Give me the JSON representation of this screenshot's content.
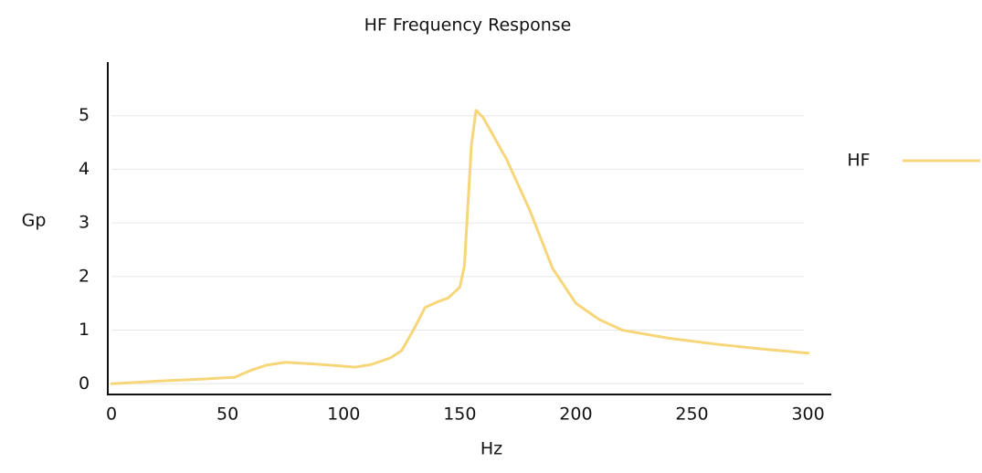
{
  "chart_data": {
    "type": "line",
    "title": "HF Frequency Response",
    "x_label": "Hz",
    "y_label": "Gp",
    "x": [
      0,
      20,
      40,
      53,
      60,
      67,
      75,
      90,
      105,
      112,
      120,
      125,
      130,
      135,
      140,
      145,
      150,
      152,
      155,
      157,
      160,
      170,
      180,
      190,
      200,
      210,
      220,
      240,
      260,
      280,
      300
    ],
    "series": [
      {
        "name": "HF",
        "color": "#f7d67a",
        "values": [
          0.0,
          0.05,
          0.09,
          0.12,
          0.25,
          0.35,
          0.4,
          0.36,
          0.31,
          0.36,
          0.48,
          0.62,
          1.0,
          1.42,
          1.52,
          1.6,
          1.8,
          2.2,
          4.45,
          5.1,
          4.97,
          4.2,
          3.25,
          2.15,
          1.5,
          1.2,
          1.0,
          0.85,
          0.74,
          0.65,
          0.57
        ]
      }
    ],
    "xlim": [
      -1.6,
      310
    ],
    "xticks": [
      0,
      50,
      100,
      150,
      200,
      250,
      300
    ],
    "ylim": [
      -0.2,
      6
    ],
    "yticks": [
      0,
      1,
      2,
      3,
      4,
      5
    ],
    "grid": true,
    "legend": "right"
  }
}
